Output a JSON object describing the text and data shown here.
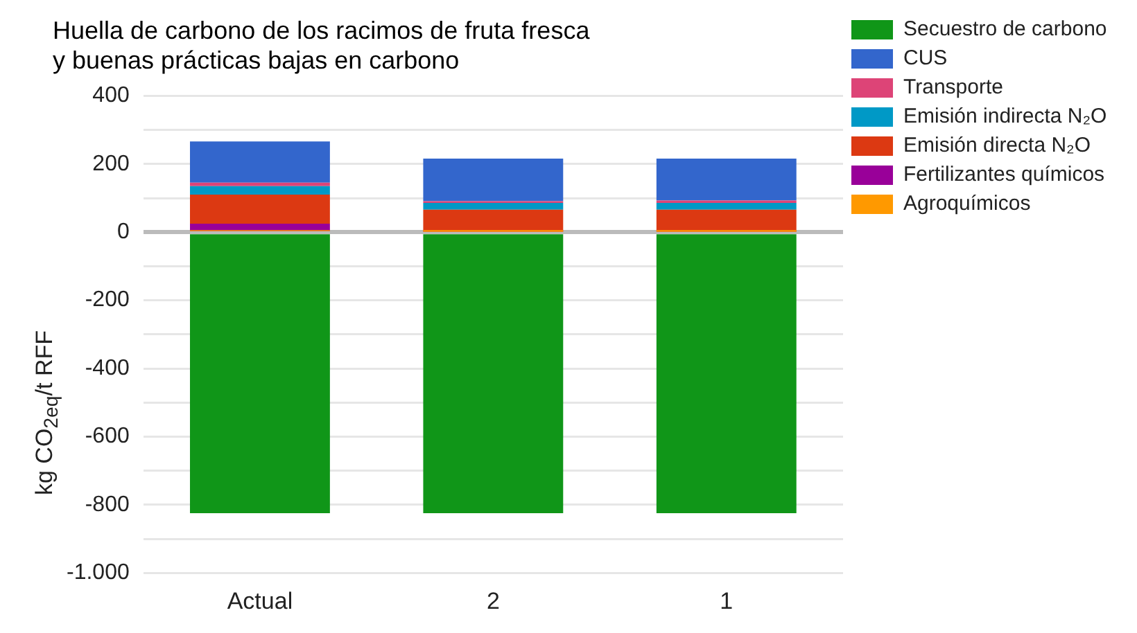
{
  "chart_data": {
    "type": "bar",
    "title": "Huella de carbono de los racimos de fruta fresca y buenas prácticas bajas en carbono",
    "ylabel": "kg CO$_{2eq}$/t RFF",
    "categories": [
      "Actual",
      "2",
      "1"
    ],
    "stacked": true,
    "series": [
      {
        "name": "Agroquímicos",
        "color": "#ff9900",
        "values": [
          3,
          1,
          1
        ]
      },
      {
        "name": "Fertilizantes químicos",
        "color": "#990099",
        "values": [
          22,
          2,
          2
        ]
      },
      {
        "name": "Emisión directa N₂O",
        "color": "#dc3912",
        "values": [
          85,
          63,
          63
        ]
      },
      {
        "name": "Emisión indirecta N₂O",
        "color": "#0099c6",
        "values": [
          25,
          20,
          20
        ]
      },
      {
        "name": "Transporte",
        "color": "#dd4477",
        "values": [
          10,
          5,
          7
        ]
      },
      {
        "name": "CUS",
        "color": "#3366cc",
        "values": [
          121,
          125,
          123
        ]
      },
      {
        "name": "Secuestro de carbono",
        "color": "#109618",
        "values": [
          -825,
          -825,
          -825
        ]
      }
    ],
    "ylim": [
      -1000,
      400
    ],
    "yticks": [
      400,
      {
        "value": 300,
        "label": null
      },
      200,
      {
        "value": 100,
        "label": null
      },
      0,
      {
        "value": -100,
        "label": null
      },
      -200,
      {
        "value": -300,
        "label": null
      },
      -400,
      {
        "value": -500,
        "label": null
      },
      -600,
      {
        "value": -700,
        "label": null
      },
      -800,
      {
        "value": -900,
        "label": null
      },
      {
        "value": -1000,
        "label": "-1.000"
      }
    ],
    "grid": "y",
    "legend": "right"
  }
}
